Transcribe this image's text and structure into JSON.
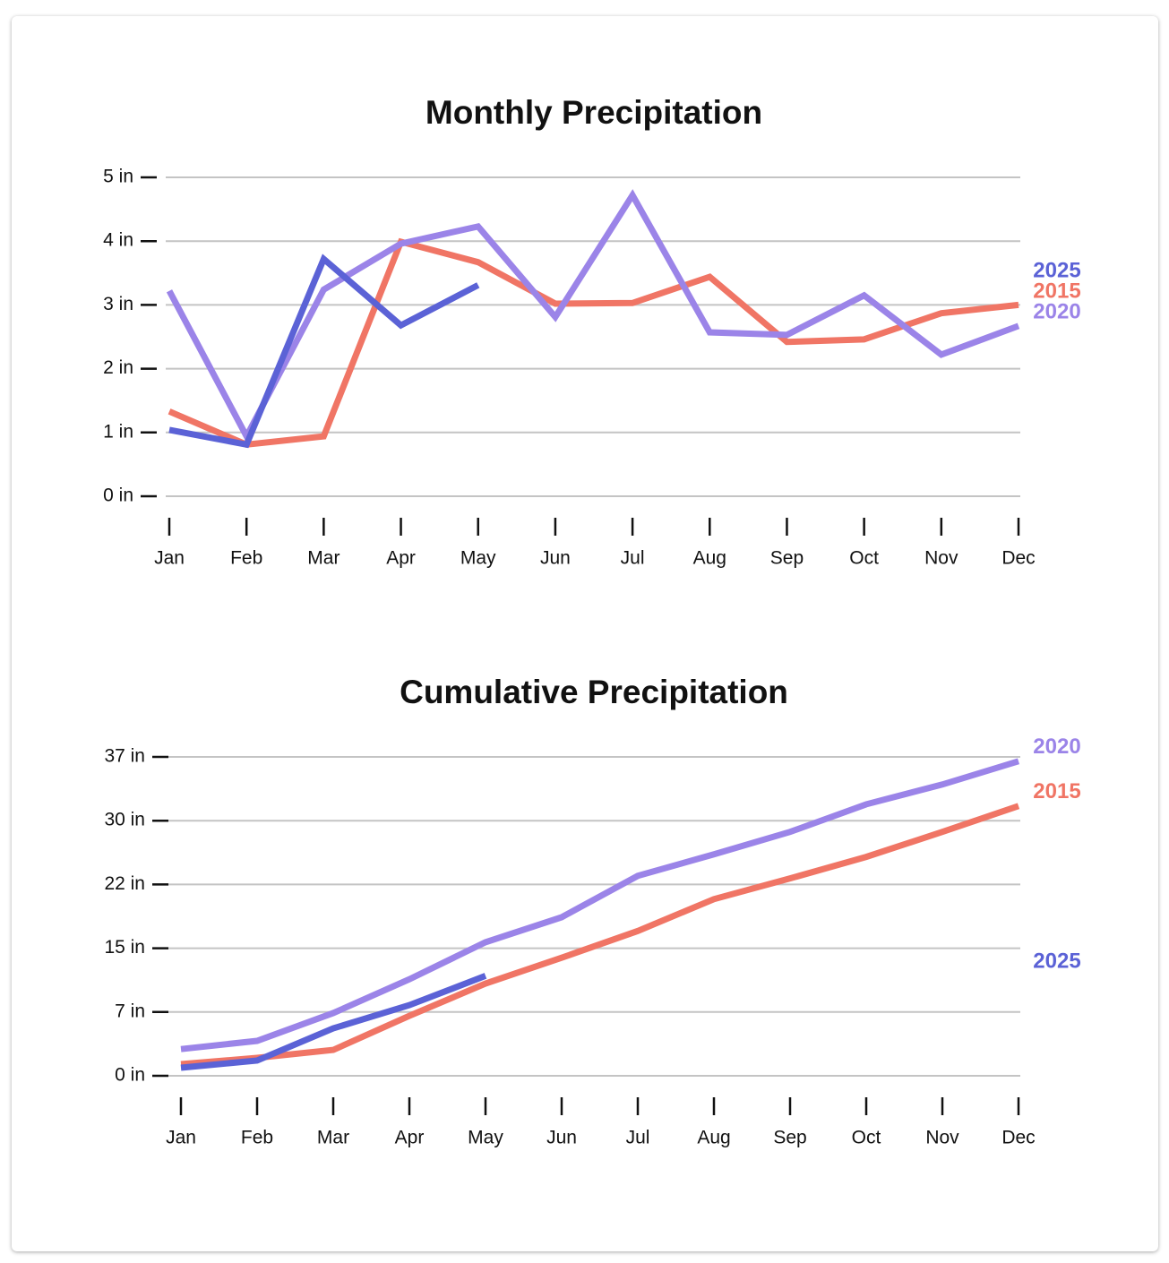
{
  "chart_data": [
    {
      "type": "line",
      "title": "Monthly Precipitation",
      "categories": [
        "Jan",
        "Feb",
        "Mar",
        "Apr",
        "May",
        "Jun",
        "Jul",
        "Aug",
        "Sep",
        "Oct",
        "Nov",
        "Dec"
      ],
      "ylim": [
        0,
        5
      ],
      "yticks": [
        {
          "value": 0,
          "label": "0 in"
        },
        {
          "value": 1,
          "label": "1 in"
        },
        {
          "value": 2,
          "label": "2 in"
        },
        {
          "value": 3,
          "label": "3 in"
        },
        {
          "value": 4,
          "label": "4 in"
        },
        {
          "value": 5,
          "label": "5 in"
        }
      ],
      "grid": true,
      "series": [
        {
          "name": "2015",
          "color": "#f07565",
          "values": [
            1.33,
            0.81,
            0.94,
            3.99,
            3.67,
            3.02,
            3.03,
            3.44,
            2.42,
            2.46,
            2.87,
            3.0
          ]
        },
        {
          "name": "2020",
          "color": "#9b84e8",
          "values": [
            3.22,
            0.94,
            3.24,
            3.96,
            4.23,
            2.81,
            4.72,
            2.57,
            2.53,
            3.15,
            2.22,
            2.67
          ]
        },
        {
          "name": "2025",
          "color": "#5b62d6",
          "values": [
            1.04,
            0.81,
            3.72,
            2.68,
            3.31,
            null,
            null,
            null,
            null,
            null,
            null,
            null
          ]
        }
      ]
    },
    {
      "type": "line",
      "title": "Cumulative Precipitation",
      "categories": [
        "Jan",
        "Feb",
        "Mar",
        "Apr",
        "May",
        "Jun",
        "Jul",
        "Aug",
        "Sep",
        "Oct",
        "Nov",
        "Dec"
      ],
      "ylim": [
        0,
        37
      ],
      "yticks": [
        {
          "value": 0,
          "label": "0 in"
        },
        {
          "value": 7.4,
          "label": "7 in"
        },
        {
          "value": 14.8,
          "label": "15 in"
        },
        {
          "value": 22.2,
          "label": "22 in"
        },
        {
          "value": 29.6,
          "label": "30 in"
        },
        {
          "value": 37,
          "label": "37 in"
        }
      ],
      "grid": true,
      "series": [
        {
          "name": "2015",
          "color": "#f07565",
          "values": [
            1.35,
            2.08,
            3.0,
            6.96,
            10.7,
            13.7,
            16.8,
            20.5,
            22.9,
            25.4,
            28.3,
            31.3
          ]
        },
        {
          "name": "2020",
          "color": "#9b84e8",
          "values": [
            3.1,
            4.05,
            7.28,
            11.2,
            15.5,
            18.4,
            23.2,
            25.7,
            28.3,
            31.5,
            33.8,
            36.5
          ]
        },
        {
          "name": "2025",
          "color": "#5b62d6",
          "values": [
            0.94,
            1.77,
            5.5,
            8.2,
            11.6,
            null,
            null,
            null,
            null,
            null,
            null,
            null
          ]
        }
      ]
    }
  ]
}
